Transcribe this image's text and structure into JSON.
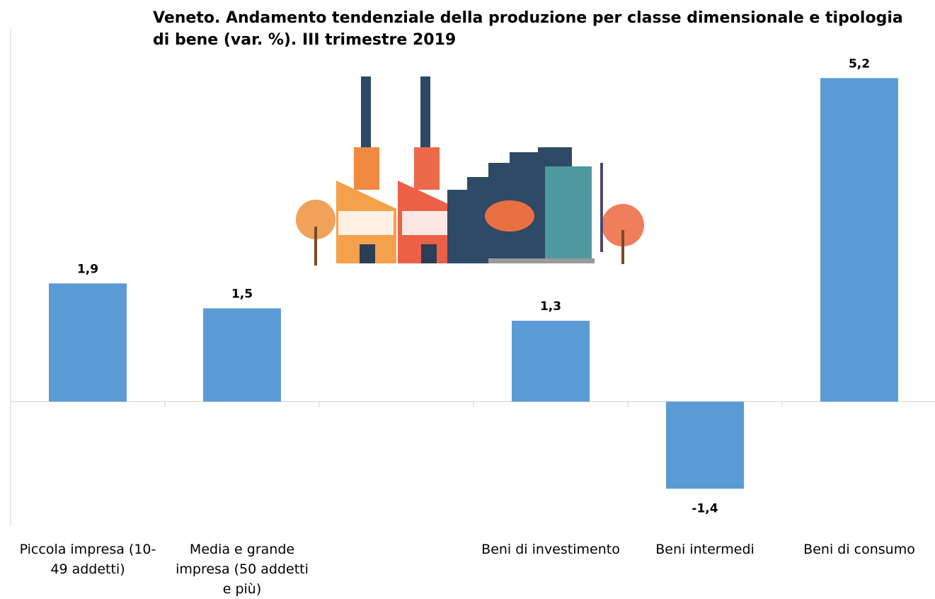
{
  "chart_data": {
    "type": "bar",
    "title": "Veneto. Andamento tendenziale della produzione per classe dimensionale e tipologia di bene (var. %). III trimestre 2019",
    "categories": [
      "Piccola impresa (10-49 addetti)",
      "Media e grande impresa (50 addetti e più)",
      null,
      "Beni di investimento",
      "Beni intermedi",
      "Beni di consumo"
    ],
    "values": [
      1.9,
      1.5,
      null,
      1.3,
      -1.4,
      5.2
    ],
    "value_labels": [
      "1,9",
      "1,5",
      null,
      "1,3",
      "-1,4",
      "5,2"
    ],
    "color": "#5b9bd5",
    "ylim": [
      -2,
      6
    ]
  }
}
